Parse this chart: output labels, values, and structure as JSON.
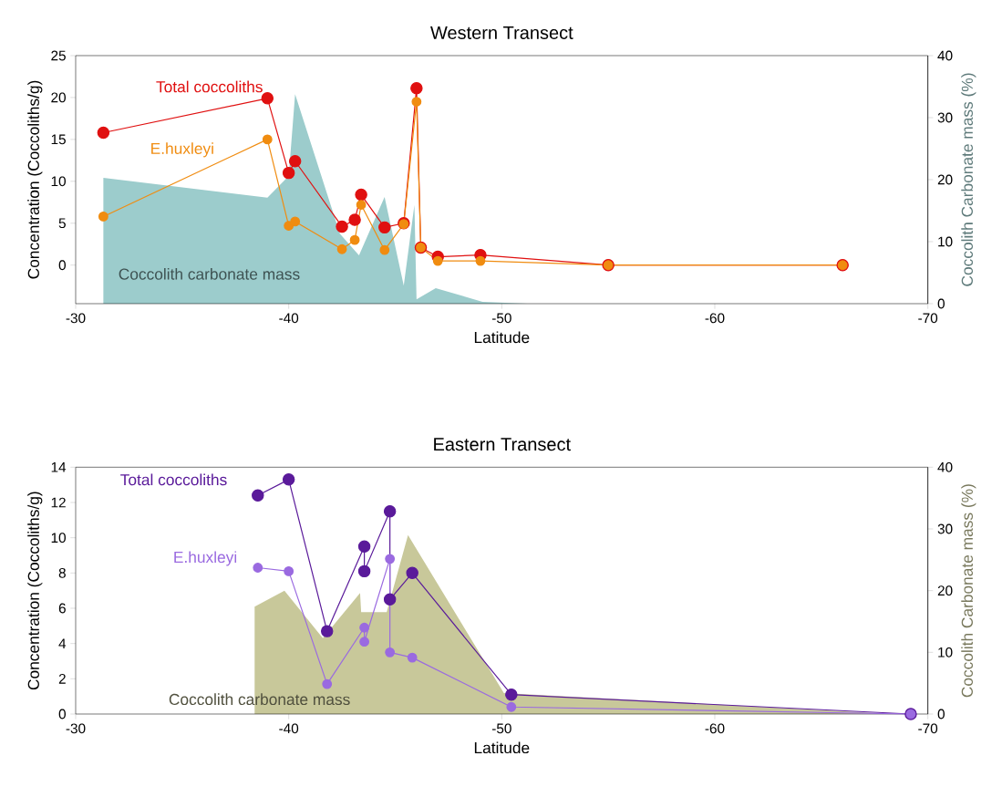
{
  "chart_data": [
    {
      "type": "line",
      "title": "Western Transect",
      "xlabel": "Latitude",
      "ylabel": "Concentration (Coccoliths/g)",
      "y2label": "Coccolith Carbonate mass (%)",
      "xlim": [
        -30,
        -70
      ],
      "xticks": [
        -30,
        -40,
        -50,
        -60,
        -70
      ],
      "ylim": [
        -4.6,
        25
      ],
      "yticks": [
        0,
        5,
        10,
        15,
        20,
        25
      ],
      "y2lim": [
        0,
        40
      ],
      "y2ticks": [
        0,
        10,
        20,
        30,
        40
      ],
      "legend": false,
      "grid": false,
      "series": [
        {
          "name": "Coccolith carbonate mass",
          "type": "area",
          "axis": "y2",
          "color": "#9ccccc",
          "x": [
            -31.3,
            -39.0,
            -40.0,
            -40.3,
            -42.4,
            -43.3,
            -44.5,
            -45.4,
            -45.9,
            -46.0,
            -46.9,
            -49.1,
            -51.2,
            -66.0
          ],
          "values": [
            20.3,
            17.1,
            20.6,
            33.8,
            11.3,
            7.8,
            17.2,
            2.9,
            15.9,
            0.7,
            2.5,
            0.3,
            0,
            0
          ]
        },
        {
          "name": "Total coccoliths",
          "marker": "circle",
          "color": "#e01010",
          "x": [
            -31.3,
            -39.0,
            -40.0,
            -40.3,
            -42.5,
            -43.1,
            -43.4,
            -44.5,
            -45.4,
            -46.0,
            -46.2,
            -47.0,
            -49.0,
            -55.0,
            -66.0
          ],
          "values": [
            15.8,
            19.9,
            11.0,
            12.4,
            4.6,
            5.4,
            8.4,
            4.5,
            5.0,
            21.1,
            2.1,
            1.0,
            1.2,
            0,
            0
          ]
        },
        {
          "name": "E.huxleyi",
          "marker": "circle",
          "color": "#f08c10",
          "x": [
            -31.3,
            -39.0,
            -40.0,
            -40.3,
            -42.5,
            -43.1,
            -43.4,
            -44.5,
            -45.4,
            -46.0,
            -46.2,
            -47.0,
            -49.0,
            -55.0,
            -66.0
          ],
          "values": [
            5.8,
            15.0,
            4.7,
            5.2,
            1.9,
            3.0,
            7.2,
            1.8,
            4.9,
            19.5,
            2.1,
            0.5,
            0.5,
            0,
            0
          ]
        }
      ]
    },
    {
      "type": "line",
      "title": "Eastern Transect",
      "xlabel": "Latitude",
      "ylabel": "Concentration (Coccoliths/g)",
      "y2label": "Coccolith Carbonate mass (%)",
      "xlim": [
        -30,
        -70
      ],
      "xticks": [
        -30,
        -40,
        -50,
        -60,
        -70
      ],
      "ylim": [
        0,
        14
      ],
      "yticks": [
        0,
        2,
        4,
        6,
        8,
        10,
        12,
        14
      ],
      "y2lim": [
        0,
        40
      ],
      "y2ticks": [
        0,
        10,
        20,
        30,
        40
      ],
      "legend": false,
      "grid": false,
      "series": [
        {
          "name": "Coccolith carbonate mass",
          "type": "area",
          "axis": "y2",
          "color": "#c8c89a",
          "x": [
            -38.4,
            -39.8,
            -41.6,
            -43.35,
            -43.4,
            -44.6,
            -45.6,
            -50.1,
            -68.4
          ],
          "values": [
            17.4,
            20.0,
            12.3,
            19.6,
            16.5,
            16.5,
            29.0,
            3.4,
            0
          ]
        },
        {
          "name": "Total coccoliths",
          "marker": "circle",
          "color": "#5a1a9a",
          "x": [
            -38.55,
            -40.0,
            -41.8,
            -43.55,
            -43.55,
            -44.75,
            -44.75,
            -45.8,
            -50.45,
            -69.2
          ],
          "values": [
            12.4,
            13.3,
            4.7,
            9.5,
            8.1,
            11.5,
            6.5,
            8.0,
            1.1,
            0
          ]
        },
        {
          "name": "E.huxleyi",
          "marker": "circle",
          "color": "#9a6ae0",
          "x": [
            -38.55,
            -40.0,
            -41.8,
            -43.55,
            -43.55,
            -44.75,
            -44.75,
            -45.8,
            -50.45,
            -69.2
          ],
          "values": [
            8.3,
            8.1,
            1.7,
            4.9,
            4.1,
            8.8,
            3.5,
            3.2,
            0.4,
            0
          ]
        }
      ]
    }
  ]
}
